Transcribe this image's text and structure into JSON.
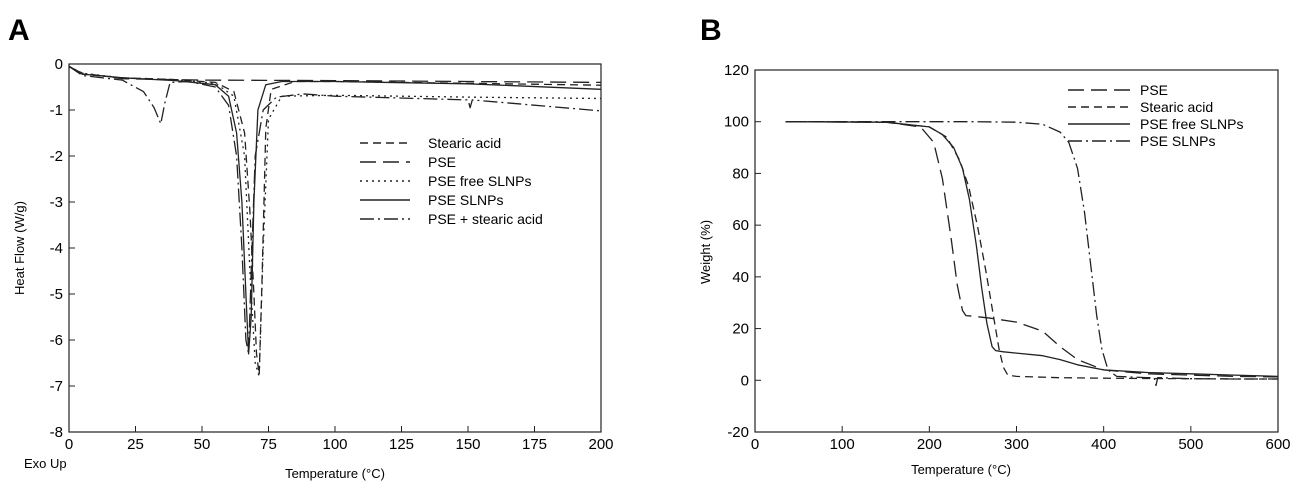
{
  "chart_data": [
    {
      "panel": "A",
      "type": "line",
      "xlabel": "Temperature (°C)",
      "ylabel": "Heat Flow (W/g)",
      "corner_note": "Exo Up",
      "xlim": [
        0,
        200
      ],
      "ylim": [
        -8,
        0
      ],
      "xticks": [
        0,
        25,
        50,
        75,
        100,
        125,
        150,
        175,
        200
      ],
      "yticks": [
        0,
        -1,
        -2,
        -3,
        -4,
        -5,
        -6,
        -7,
        -8
      ],
      "grid": false,
      "legend_position": "upper-right",
      "series": [
        {
          "name": "Stearic acid",
          "style": "dashed",
          "x": [
            0,
            5,
            20,
            40,
            55,
            62,
            66,
            68,
            69.5,
            70.5,
            71.5,
            72.5,
            74,
            76,
            85,
            100,
            150,
            200
          ],
          "y": [
            -0.05,
            -0.22,
            -0.3,
            -0.34,
            -0.4,
            -0.6,
            -1.5,
            -3.2,
            -5.0,
            -6.3,
            -6.75,
            -4.8,
            -1.4,
            -0.55,
            -0.38,
            -0.38,
            -0.42,
            -0.46
          ]
        },
        {
          "name": "PSE",
          "style": "long-dash",
          "x": [
            0,
            5,
            20,
            50,
            100,
            150,
            200
          ],
          "y": [
            -0.06,
            -0.2,
            -0.32,
            -0.35,
            -0.36,
            -0.38,
            -0.4
          ]
        },
        {
          "name": "PSE free SLNPs",
          "style": "dotted",
          "x": [
            0,
            5,
            20,
            40,
            55,
            62,
            66,
            68,
            70,
            71.5,
            73,
            75,
            80,
            100,
            150,
            200
          ],
          "y": [
            -0.05,
            -0.2,
            -0.3,
            -0.34,
            -0.42,
            -0.7,
            -2.0,
            -4.5,
            -6.5,
            -6.8,
            -4.0,
            -1.2,
            -0.7,
            -0.68,
            -0.72,
            -0.75
          ]
        },
        {
          "name": "PSE SLNPs",
          "style": "solid",
          "x": [
            0,
            5,
            20,
            40,
            55,
            60,
            63,
            65,
            66.5,
            67.5,
            68.5,
            69.5,
            71,
            74,
            80,
            100,
            150,
            200
          ],
          "y": [
            -0.05,
            -0.22,
            -0.3,
            -0.36,
            -0.45,
            -0.7,
            -1.5,
            -3.0,
            -5.0,
            -6.3,
            -5.5,
            -3.0,
            -1.0,
            -0.45,
            -0.38,
            -0.38,
            -0.43,
            -0.55
          ]
        },
        {
          "name": "PSE + stearic acid",
          "style": "dash-dot",
          "x": [
            0,
            5,
            20,
            28,
            32,
            34.5,
            36,
            38,
            45,
            55,
            60,
            63,
            65,
            66.5,
            67.5,
            68.5,
            70,
            73,
            78,
            88,
            100,
            150,
            150.8,
            151.6,
            200
          ],
          "y": [
            -0.05,
            -0.25,
            -0.35,
            -0.6,
            -0.95,
            -1.3,
            -0.85,
            -0.4,
            -0.38,
            -0.5,
            -0.9,
            -2.0,
            -4.0,
            -6.0,
            -6.3,
            -4.5,
            -2.0,
            -1.0,
            -0.72,
            -0.65,
            -0.7,
            -0.78,
            -0.95,
            -0.78,
            -1.02
          ]
        }
      ]
    },
    {
      "panel": "B",
      "type": "line",
      "xlabel": "Temperature (°C)",
      "ylabel": "Weight (%)",
      "xlim": [
        0,
        600
      ],
      "ylim": [
        -20,
        120
      ],
      "xticks": [
        0,
        100,
        200,
        300,
        400,
        500,
        600
      ],
      "yticks": [
        -20,
        0,
        20,
        40,
        60,
        80,
        100,
        120
      ],
      "grid": false,
      "legend_position": "upper-right",
      "series": [
        {
          "name": "PSE",
          "style": "long-dash",
          "x": [
            35,
            150,
            190,
            205,
            215,
            225,
            232,
            238,
            242,
            250,
            270,
            300,
            330,
            350,
            370,
            400,
            450,
            500,
            550,
            600
          ],
          "y": [
            100,
            99.8,
            98,
            92,
            78,
            55,
            37,
            27,
            25,
            24.8,
            24,
            22.5,
            19,
            13,
            8,
            4,
            2.5,
            2,
            1.5,
            1.3
          ]
        },
        {
          "name": "Stearic acid",
          "style": "dashed",
          "x": [
            35,
            150,
            200,
            220,
            235,
            245,
            255,
            265,
            272,
            280,
            285,
            290,
            300,
            350,
            400,
            450,
            500,
            550,
            600
          ],
          "y": [
            100,
            99.8,
            98,
            94,
            85,
            75,
            60,
            42,
            28,
            12,
            5,
            2,
            1.5,
            1,
            0.8,
            0.7,
            0.6,
            0.5,
            0.5
          ]
        },
        {
          "name": "PSE free SLNPs",
          "style": "solid",
          "x": [
            35,
            150,
            200,
            215,
            228,
            238,
            246,
            254,
            260,
            266,
            272,
            276,
            285,
            300,
            330,
            350,
            370,
            400,
            450,
            500,
            550,
            600
          ],
          "y": [
            100,
            99.8,
            98,
            95,
            90,
            82,
            70,
            52,
            36,
            22,
            13,
            11.5,
            11,
            10.5,
            9.5,
            8,
            6,
            4,
            3,
            2.5,
            2,
            1.5
          ]
        },
        {
          "name": "PSE SLNPs",
          "style": "dash-dot",
          "x": [
            35,
            150,
            200,
            250,
            300,
            330,
            350,
            360,
            370,
            378,
            385,
            392,
            398,
            405,
            415,
            450,
            458,
            460,
            462,
            500,
            550,
            600
          ],
          "y": [
            100,
            100,
            100,
            100,
            99.8,
            99,
            96,
            92,
            82,
            65,
            45,
            25,
            12,
            4,
            1.5,
            1,
            1,
            -2,
            1,
            0.6,
            0.5,
            0.5
          ]
        }
      ]
    }
  ]
}
